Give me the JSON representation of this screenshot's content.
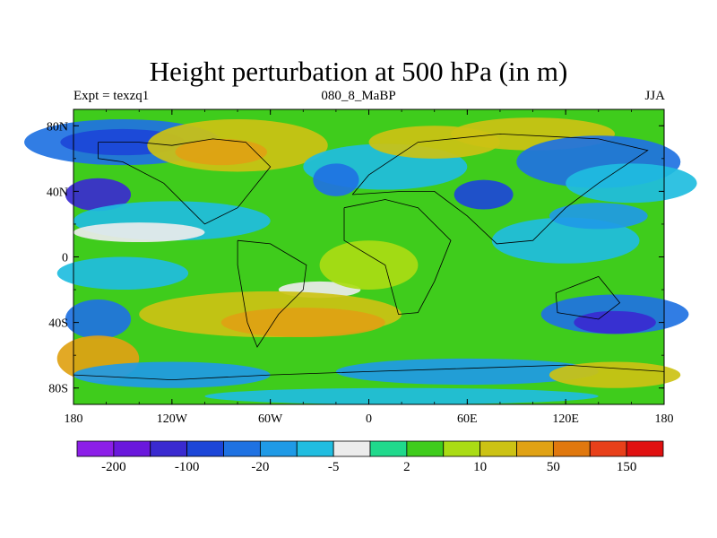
{
  "title": "Height perturbation at 500 hPa (in m)",
  "left_subtitle": "Expt = texzq1",
  "center_subtitle": "080_8_MaBP",
  "right_subtitle": "JJA",
  "chart_data": {
    "type": "heatmap",
    "title": "Height perturbation at 500 hPa (in m)",
    "x_ticks": [
      {
        "value": -180,
        "label": "180"
      },
      {
        "value": -120,
        "label": "120W"
      },
      {
        "value": -60,
        "label": "60W"
      },
      {
        "value": 0,
        "label": "0"
      },
      {
        "value": 60,
        "label": "60E"
      },
      {
        "value": 120,
        "label": "120E"
      },
      {
        "value": 180,
        "label": "180"
      }
    ],
    "y_ticks": [
      {
        "value": 80,
        "label": "80N"
      },
      {
        "value": 40,
        "label": "40N"
      },
      {
        "value": 0,
        "label": "0"
      },
      {
        "value": -40,
        "label": "40S"
      },
      {
        "value": -80,
        "label": "80S"
      }
    ],
    "xlim": [
      -180,
      180
    ],
    "ylim": [
      -90,
      90
    ],
    "colorbar": {
      "colors": [
        "#8c1fe8",
        "#6a18dc",
        "#3a2ad0",
        "#1c46d8",
        "#1f72e2",
        "#1f9ae6",
        "#20bde0",
        "#ececec",
        "#20d98c",
        "#3fcc1c",
        "#aadc14",
        "#ccc214",
        "#e0a214",
        "#e0780e",
        "#e8401a",
        "#e01010"
      ],
      "labels": [
        "-200",
        "-100",
        "-20",
        "-5",
        "2",
        "10",
        "50",
        "150"
      ]
    }
  }
}
